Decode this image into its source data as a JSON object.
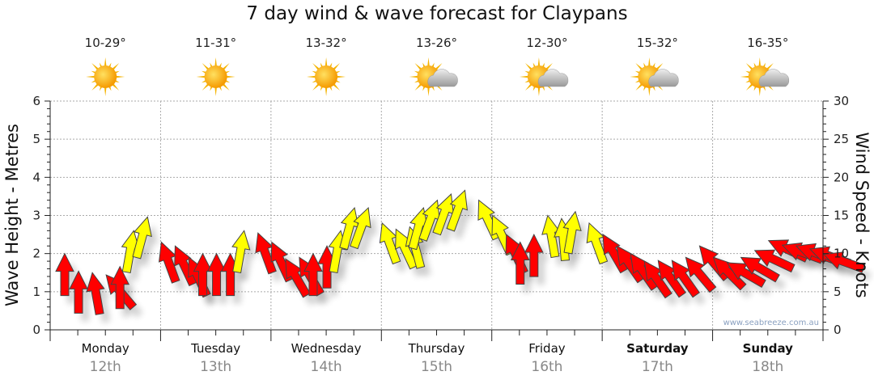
{
  "title": "7 day wind & wave forecast for Claypans",
  "days": [
    {
      "name": "Monday",
      "date": "12th",
      "temp": "10-29°",
      "icon": "sun",
      "bold": false
    },
    {
      "name": "Tuesday",
      "date": "13th",
      "temp": "11-31°",
      "icon": "sun",
      "bold": false
    },
    {
      "name": "Wednesday",
      "date": "14th",
      "temp": "13-32°",
      "icon": "sun",
      "bold": false
    },
    {
      "name": "Thursday",
      "date": "15th",
      "temp": "13-26°",
      "icon": "sun-cloud",
      "bold": false
    },
    {
      "name": "Friday",
      "date": "16th",
      "temp": "12-30°",
      "icon": "sun-cloud",
      "bold": false
    },
    {
      "name": "Saturday",
      "date": "17th",
      "temp": "15-32°",
      "icon": "sun-cloud",
      "bold": true
    },
    {
      "name": "Sunday",
      "date": "18th",
      "temp": "16-35°",
      "icon": "sun-cloud",
      "bold": true
    }
  ],
  "watermark": "www.seabreeze.com.au",
  "chart_data": {
    "type": "scatter",
    "title": "7 day wind & wave forecast for Claypans",
    "ylabel": "Wave Height - Metres",
    "y2label": "Wind Speed - Knots",
    "ylim": [
      0,
      6
    ],
    "y2lim": [
      0,
      30
    ],
    "yticks": [
      "0",
      "1",
      "2",
      "3",
      "4",
      "5",
      "6"
    ],
    "y2ticks": [
      "0",
      "5",
      "10",
      "15",
      "20",
      "25",
      "30"
    ],
    "grid": true,
    "colors": {
      "strong": "#ffff00",
      "light": "#ff0000"
    },
    "strong_threshold_knots": 12.9,
    "wind_interval_hours": 3,
    "wind_knots": [
      10,
      7.7,
      7.5,
      7.2,
      8.3,
      13,
      14.8,
      11.5,
      11,
      9.5,
      10,
      10,
      10,
      13,
      12.7,
      11.5,
      9.3,
      9.5,
      10,
      11,
      13,
      16,
      16,
      14,
      13.2,
      13.5,
      16,
      17,
      17.8,
      18.3,
      17,
      15,
      12.5,
      11.5,
      12.5,
      15,
      14.6,
      15.5,
      14,
      12.5,
      11,
      10,
      9,
      9.1,
      9.1,
      9.5,
      11,
      9.5,
      8.8,
      9.5,
      10.4,
      11.7,
      11.1,
      11,
      10.6,
      9.9
    ],
    "wind_direction_deg": [
      0,
      0,
      -10,
      -40,
      0,
      10,
      15,
      -20,
      -25,
      -25,
      0,
      0,
      0,
      10,
      -20,
      -25,
      -30,
      -30,
      0,
      0,
      10,
      15,
      20,
      -20,
      -25,
      -15,
      15,
      20,
      20,
      20,
      -25,
      -25,
      -25,
      0,
      0,
      -10,
      -5,
      10,
      -20,
      -30,
      -35,
      -35,
      -35,
      -35,
      -35,
      -40,
      -40,
      -45,
      -60,
      -60,
      -65,
      -65,
      -70,
      -70,
      -70,
      -70
    ]
  }
}
